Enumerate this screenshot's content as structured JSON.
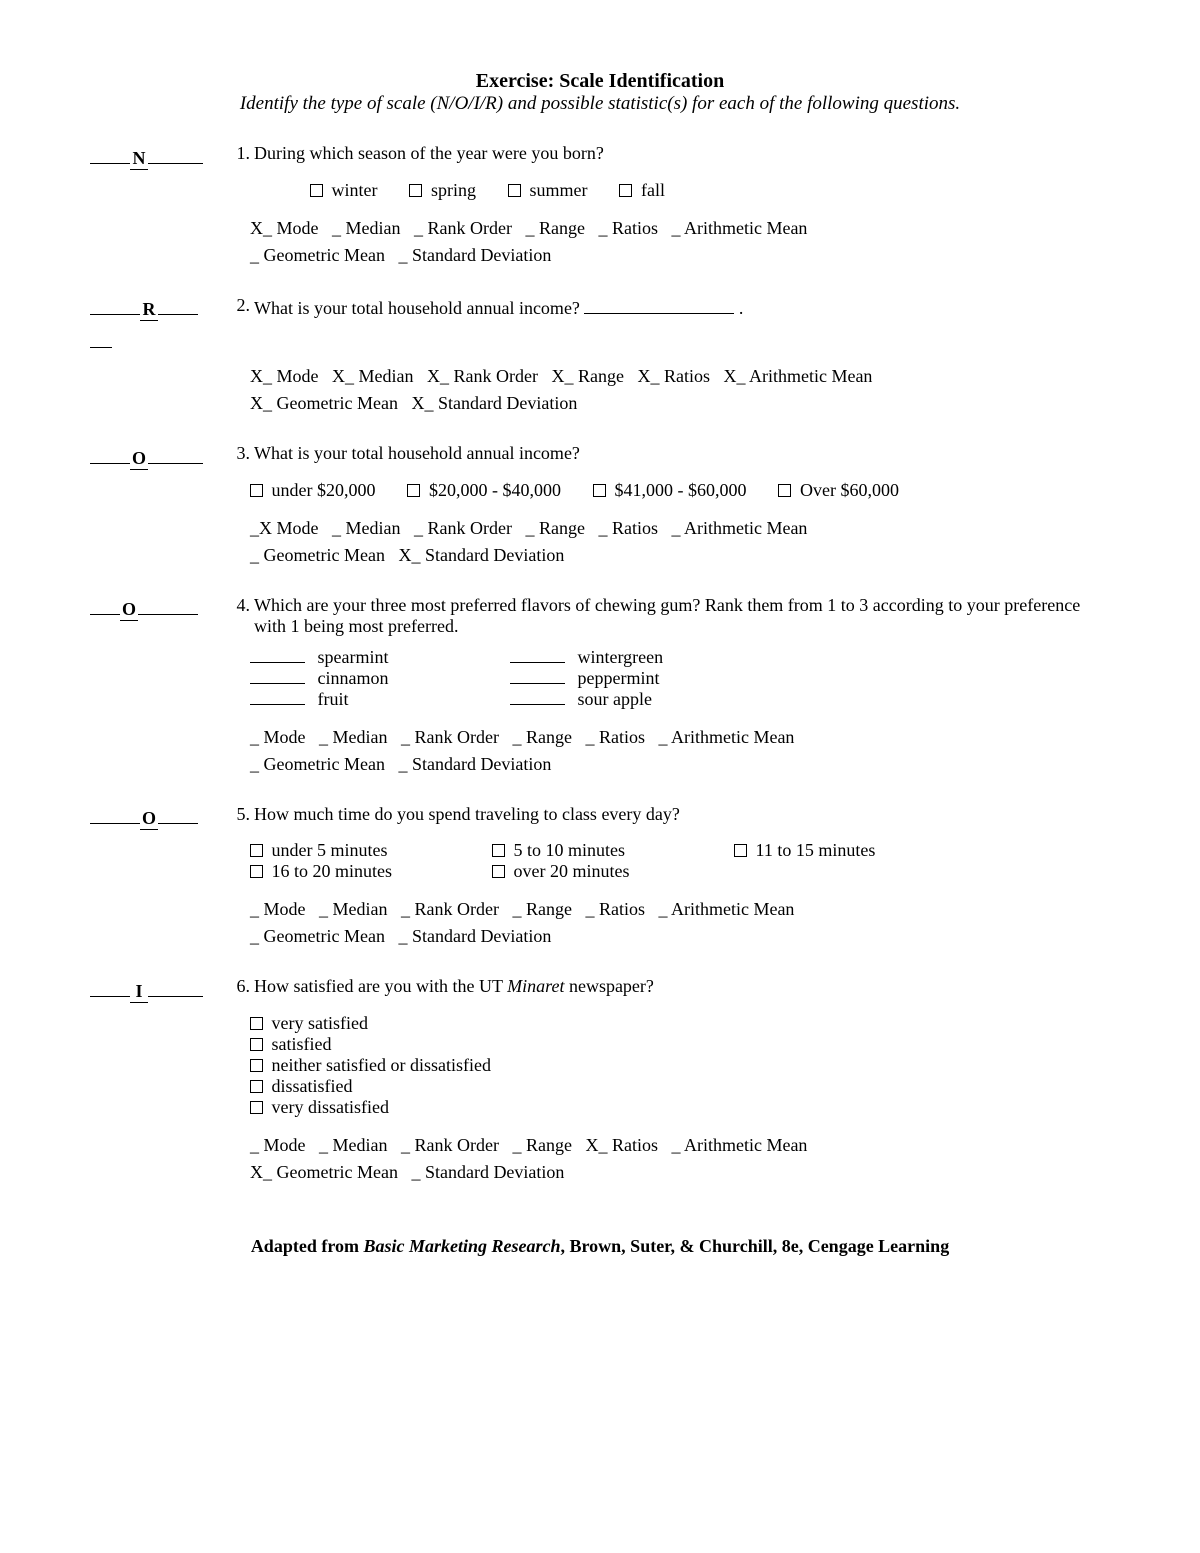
{
  "title": "Exercise: Scale Identification",
  "subtitle": "Identify the type of scale (N/O/I/R) and possible statistic(s) for each of the following questions.",
  "stat_labels": [
    "Mode",
    "Median",
    "Rank Order",
    "Range",
    "Ratios",
    "Arithmetic Mean",
    "Geometric Mean",
    "Standard Deviation"
  ],
  "questions": [
    {
      "num": "1.",
      "ans": "N",
      "text": "During which season of the year were you born?",
      "opts": [
        "winter",
        "spring",
        "summer",
        "fall"
      ],
      "opts_inline": true,
      "opts_indent": 60,
      "stats": [
        "X",
        "_",
        "_",
        "_",
        "_",
        "_",
        "_",
        "_"
      ]
    },
    {
      "num": "2.",
      "ans": "R",
      "text": "What is your total household annual income?",
      "fill_blank": true,
      "stats": [
        "X",
        "X",
        "X",
        "X",
        "X",
        "X",
        "X",
        "X"
      ],
      "stats_prefix_space": [
        false,
        true,
        false,
        false,
        false,
        false,
        false,
        false
      ],
      "stray_under": true
    },
    {
      "num": "3.",
      "ans": "O",
      "text": "What is your total household annual income?",
      "opts": [
        "under $20,000",
        "$20,000 - $40,000",
        "$41,000 - $60,000",
        "Over $60,000"
      ],
      "opts_inline": true,
      "stats": [
        "_X",
        "_",
        "_",
        "_",
        "_",
        "_",
        "_",
        "X"
      ],
      "stats_special": true
    },
    {
      "num": "4.",
      "ans": "O",
      "text": "Which are your three most preferred flavors of chewing gum? Rank them from 1 to 3 according to your preference with 1 being most preferred.",
      "ranks": [
        [
          "spearmint",
          "wintergreen"
        ],
        [
          "cinnamon",
          "peppermint"
        ],
        [
          "fruit",
          "sour apple"
        ]
      ],
      "stats": [
        "_",
        "_",
        "_",
        "_",
        "_",
        "_",
        "_",
        "_"
      ]
    },
    {
      "num": "5.",
      "ans": "O",
      "text": "How much time do you spend traveling to class every day?",
      "opts_rows": [
        [
          "under 5 minutes",
          "5 to 10 minutes",
          "11 to 15 minutes"
        ],
        [
          "16 to 20 minutes",
          "over 20 minutes"
        ]
      ],
      "stats": [
        "_",
        "_",
        "_",
        "_",
        "_",
        "_",
        "_",
        "_"
      ]
    },
    {
      "num": "6.",
      "ans": "I",
      "text_pre": "How satisfied are you with the UT ",
      "text_italic": "Minaret",
      "text_post": " newspaper?",
      "opts_vert": [
        "very satisfied",
        "satisfied",
        "neither satisfied or dissatisfied",
        "dissatisfied",
        "very dissatisfied"
      ],
      "stats": [
        "_",
        "_",
        "_",
        "_",
        "X",
        "_",
        "X",
        "_"
      ]
    }
  ],
  "footer_pre": "Adapted from ",
  "footer_italic": "Basic Marketing Research",
  "footer_post": ", Brown, Suter, & Churchill, 8e, Cengage Learning"
}
